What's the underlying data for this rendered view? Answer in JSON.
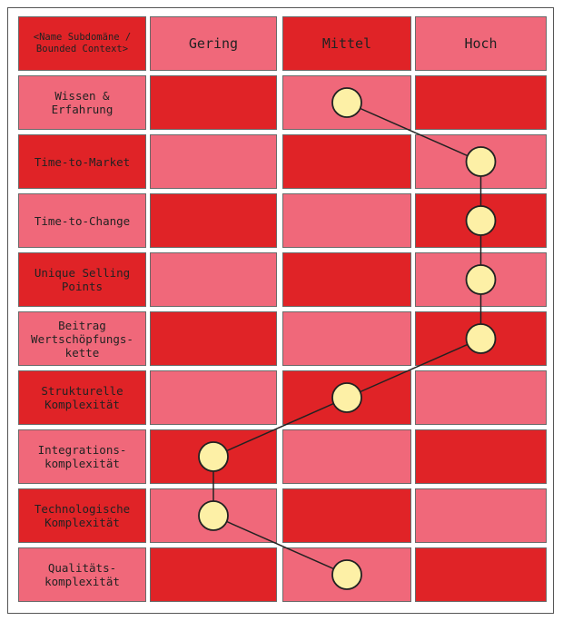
{
  "colors": {
    "light": "#f0687a",
    "dark": "#e02327"
  },
  "header": {
    "corner_label": "<Name Subdomäne /\nBounded Context>",
    "columns": [
      "Gering",
      "Mittel",
      "Hoch"
    ]
  },
  "rows": [
    {
      "label": "Wissen &\nErfahrung",
      "level": "Mittel"
    },
    {
      "label": "Time-to-Market",
      "level": "Hoch"
    },
    {
      "label": "Time-to-Change",
      "level": "Hoch"
    },
    {
      "label": "Unique Selling\nPoints",
      "level": "Hoch"
    },
    {
      "label": "Beitrag\nWertschöpfungs-\nkette",
      "level": "Hoch"
    },
    {
      "label": "Strukturelle\nKomplexität",
      "level": "Mittel"
    },
    {
      "label": "Integrations-\nkomplexität",
      "level": "Gering"
    },
    {
      "label": "Technologische\nKomplexität",
      "level": "Gering"
    },
    {
      "label": "Qualitäts-\nkomplexität",
      "level": "Mittel"
    }
  ]
}
